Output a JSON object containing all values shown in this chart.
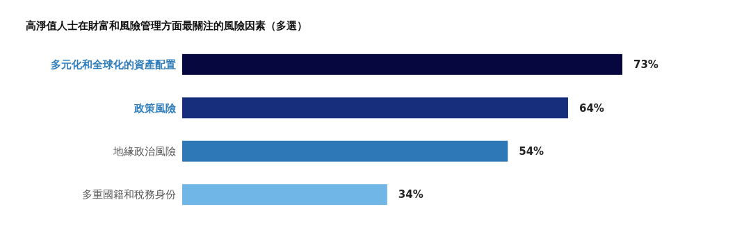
{
  "chart_data": {
    "type": "bar",
    "orientation": "horizontal",
    "title": "高淨值人士在財富和風險管理方面最關注的風險因素（多選）",
    "categories": [
      "多元化和全球化的資產配置",
      "政策風險",
      "地緣政治風險",
      "多重國籍和稅務身份"
    ],
    "values": [
      73,
      64,
      54,
      34
    ],
    "colors": [
      "#07073f",
      "#172e7c",
      "#2f78b8",
      "#70b6e6"
    ],
    "value_labels": [
      "73%",
      "64%",
      "54%",
      "34%"
    ]
  }
}
